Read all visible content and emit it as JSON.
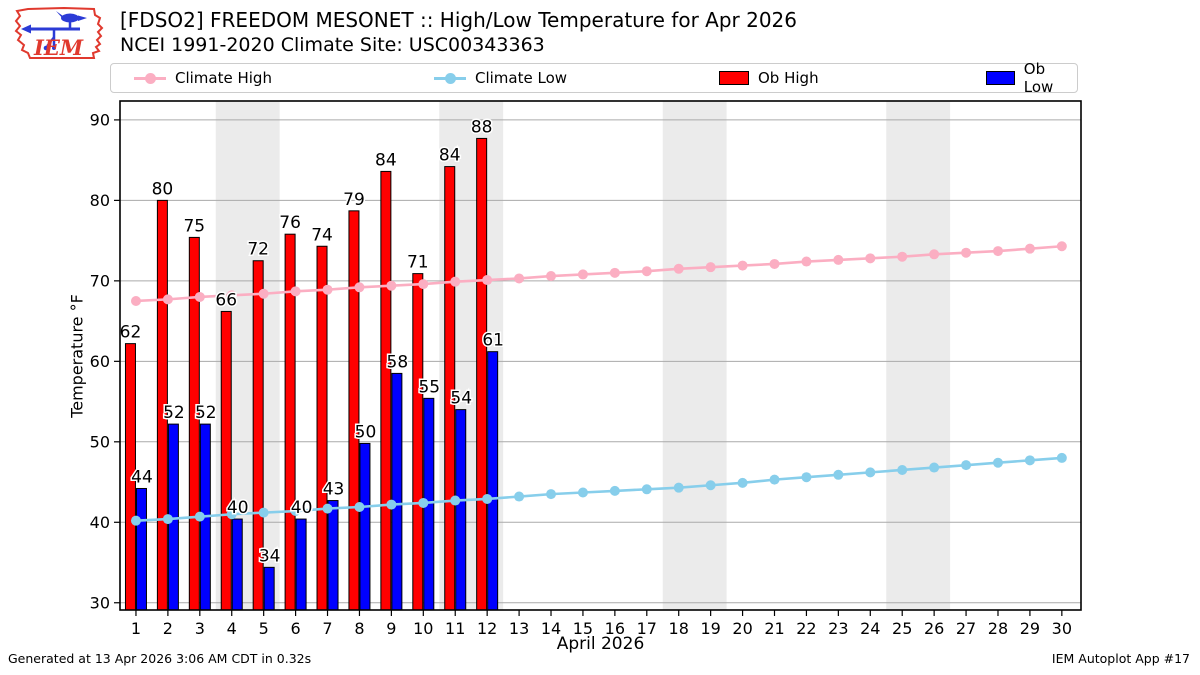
{
  "header": {
    "title": "[FDSO2] FREEDOM MESONET :: High/Low Temperature for Apr 2026",
    "subtitle": "NCEI 1991-2020 Climate Site: USC00343363"
  },
  "logo": {
    "text": "IEM",
    "outline_color": "#e0392e",
    "vane_color": "#2b3bd6"
  },
  "legend": {
    "items": [
      {
        "label": "Climate High",
        "type": "line",
        "color": "#fbaec2"
      },
      {
        "label": "Climate Low",
        "type": "line",
        "color": "#87ceeb"
      },
      {
        "label": "Ob High",
        "type": "patch",
        "color": "#ff0000"
      },
      {
        "label": "Ob Low",
        "type": "patch",
        "color": "#0000ff"
      }
    ]
  },
  "axes": {
    "ylabel": "Temperature °F",
    "xlabel": "April 2026"
  },
  "footer": {
    "generated": "Generated at 13 Apr 2026 3:06 AM CDT in 0.32s",
    "app": "IEM Autoplot App #17"
  },
  "chart_data": {
    "type": "bar",
    "title": "[FDSO2] FREEDOM MESONET :: High/Low Temperature for Apr 2026",
    "xlabel": "April 2026",
    "ylabel": "Temperature °F",
    "x": [
      1,
      2,
      3,
      4,
      5,
      6,
      7,
      8,
      9,
      10,
      11,
      12,
      13,
      14,
      15,
      16,
      17,
      18,
      19,
      20,
      21,
      22,
      23,
      24,
      25,
      26,
      27,
      28,
      29,
      30
    ],
    "xlim": [
      0.5,
      30.6
    ],
    "ylim": [
      29.1,
      92.35
    ],
    "yticks": [
      30,
      40,
      50,
      60,
      70,
      80,
      90
    ],
    "grid": true,
    "grid_color": "#aaaaaa",
    "band_color": "#ebebeb",
    "weekend_bands": [
      [
        3.5,
        5.5
      ],
      [
        10.5,
        12.5
      ],
      [
        17.5,
        19.5
      ],
      [
        24.5,
        26.5
      ]
    ],
    "legend_position": "top",
    "series": [
      {
        "name": "Ob High",
        "type": "bar",
        "color": "#ff0000",
        "days": [
          1,
          2,
          3,
          4,
          5,
          6,
          7,
          8,
          9,
          10,
          11,
          12
        ],
        "values": [
          62.2,
          80.0,
          75.4,
          66.2,
          72.5,
          75.8,
          74.3,
          78.7,
          83.6,
          70.9,
          84.2,
          87.7
        ],
        "labels": [
          "62",
          "80",
          "75",
          "66",
          "72",
          "76",
          "74",
          "79",
          "84",
          "71",
          "84",
          "88"
        ]
      },
      {
        "name": "Ob Low",
        "type": "bar",
        "color": "#0000ff",
        "days": [
          1,
          2,
          3,
          4,
          5,
          6,
          7,
          8,
          9,
          10,
          11,
          12
        ],
        "values": [
          44.2,
          52.2,
          52.2,
          40.4,
          34.4,
          40.4,
          42.7,
          49.8,
          58.5,
          55.4,
          54.0,
          61.2
        ],
        "labels": [
          "44",
          "52",
          "52",
          "40",
          "34",
          "40",
          "43",
          "50",
          "58",
          "55",
          "54",
          "61"
        ]
      },
      {
        "name": "Climate High",
        "type": "line",
        "color": "#fbaec2",
        "values": [
          67.5,
          67.7,
          68.0,
          68.2,
          68.4,
          68.7,
          68.9,
          69.2,
          69.4,
          69.6,
          69.9,
          70.1,
          70.3,
          70.6,
          70.8,
          71.0,
          71.2,
          71.5,
          71.7,
          71.9,
          72.1,
          72.4,
          72.6,
          72.8,
          73.0,
          73.3,
          73.5,
          73.7,
          74.0,
          74.3
        ]
      },
      {
        "name": "Climate Low",
        "type": "line",
        "color": "#87ceeb",
        "values": [
          40.2,
          40.4,
          40.7,
          41.0,
          41.2,
          41.4,
          41.7,
          41.9,
          42.2,
          42.4,
          42.7,
          42.9,
          43.2,
          43.5,
          43.7,
          43.9,
          44.1,
          44.3,
          44.6,
          44.9,
          45.3,
          45.6,
          45.9,
          46.2,
          46.5,
          46.8,
          47.1,
          47.4,
          47.7,
          48.0
        ]
      }
    ]
  }
}
